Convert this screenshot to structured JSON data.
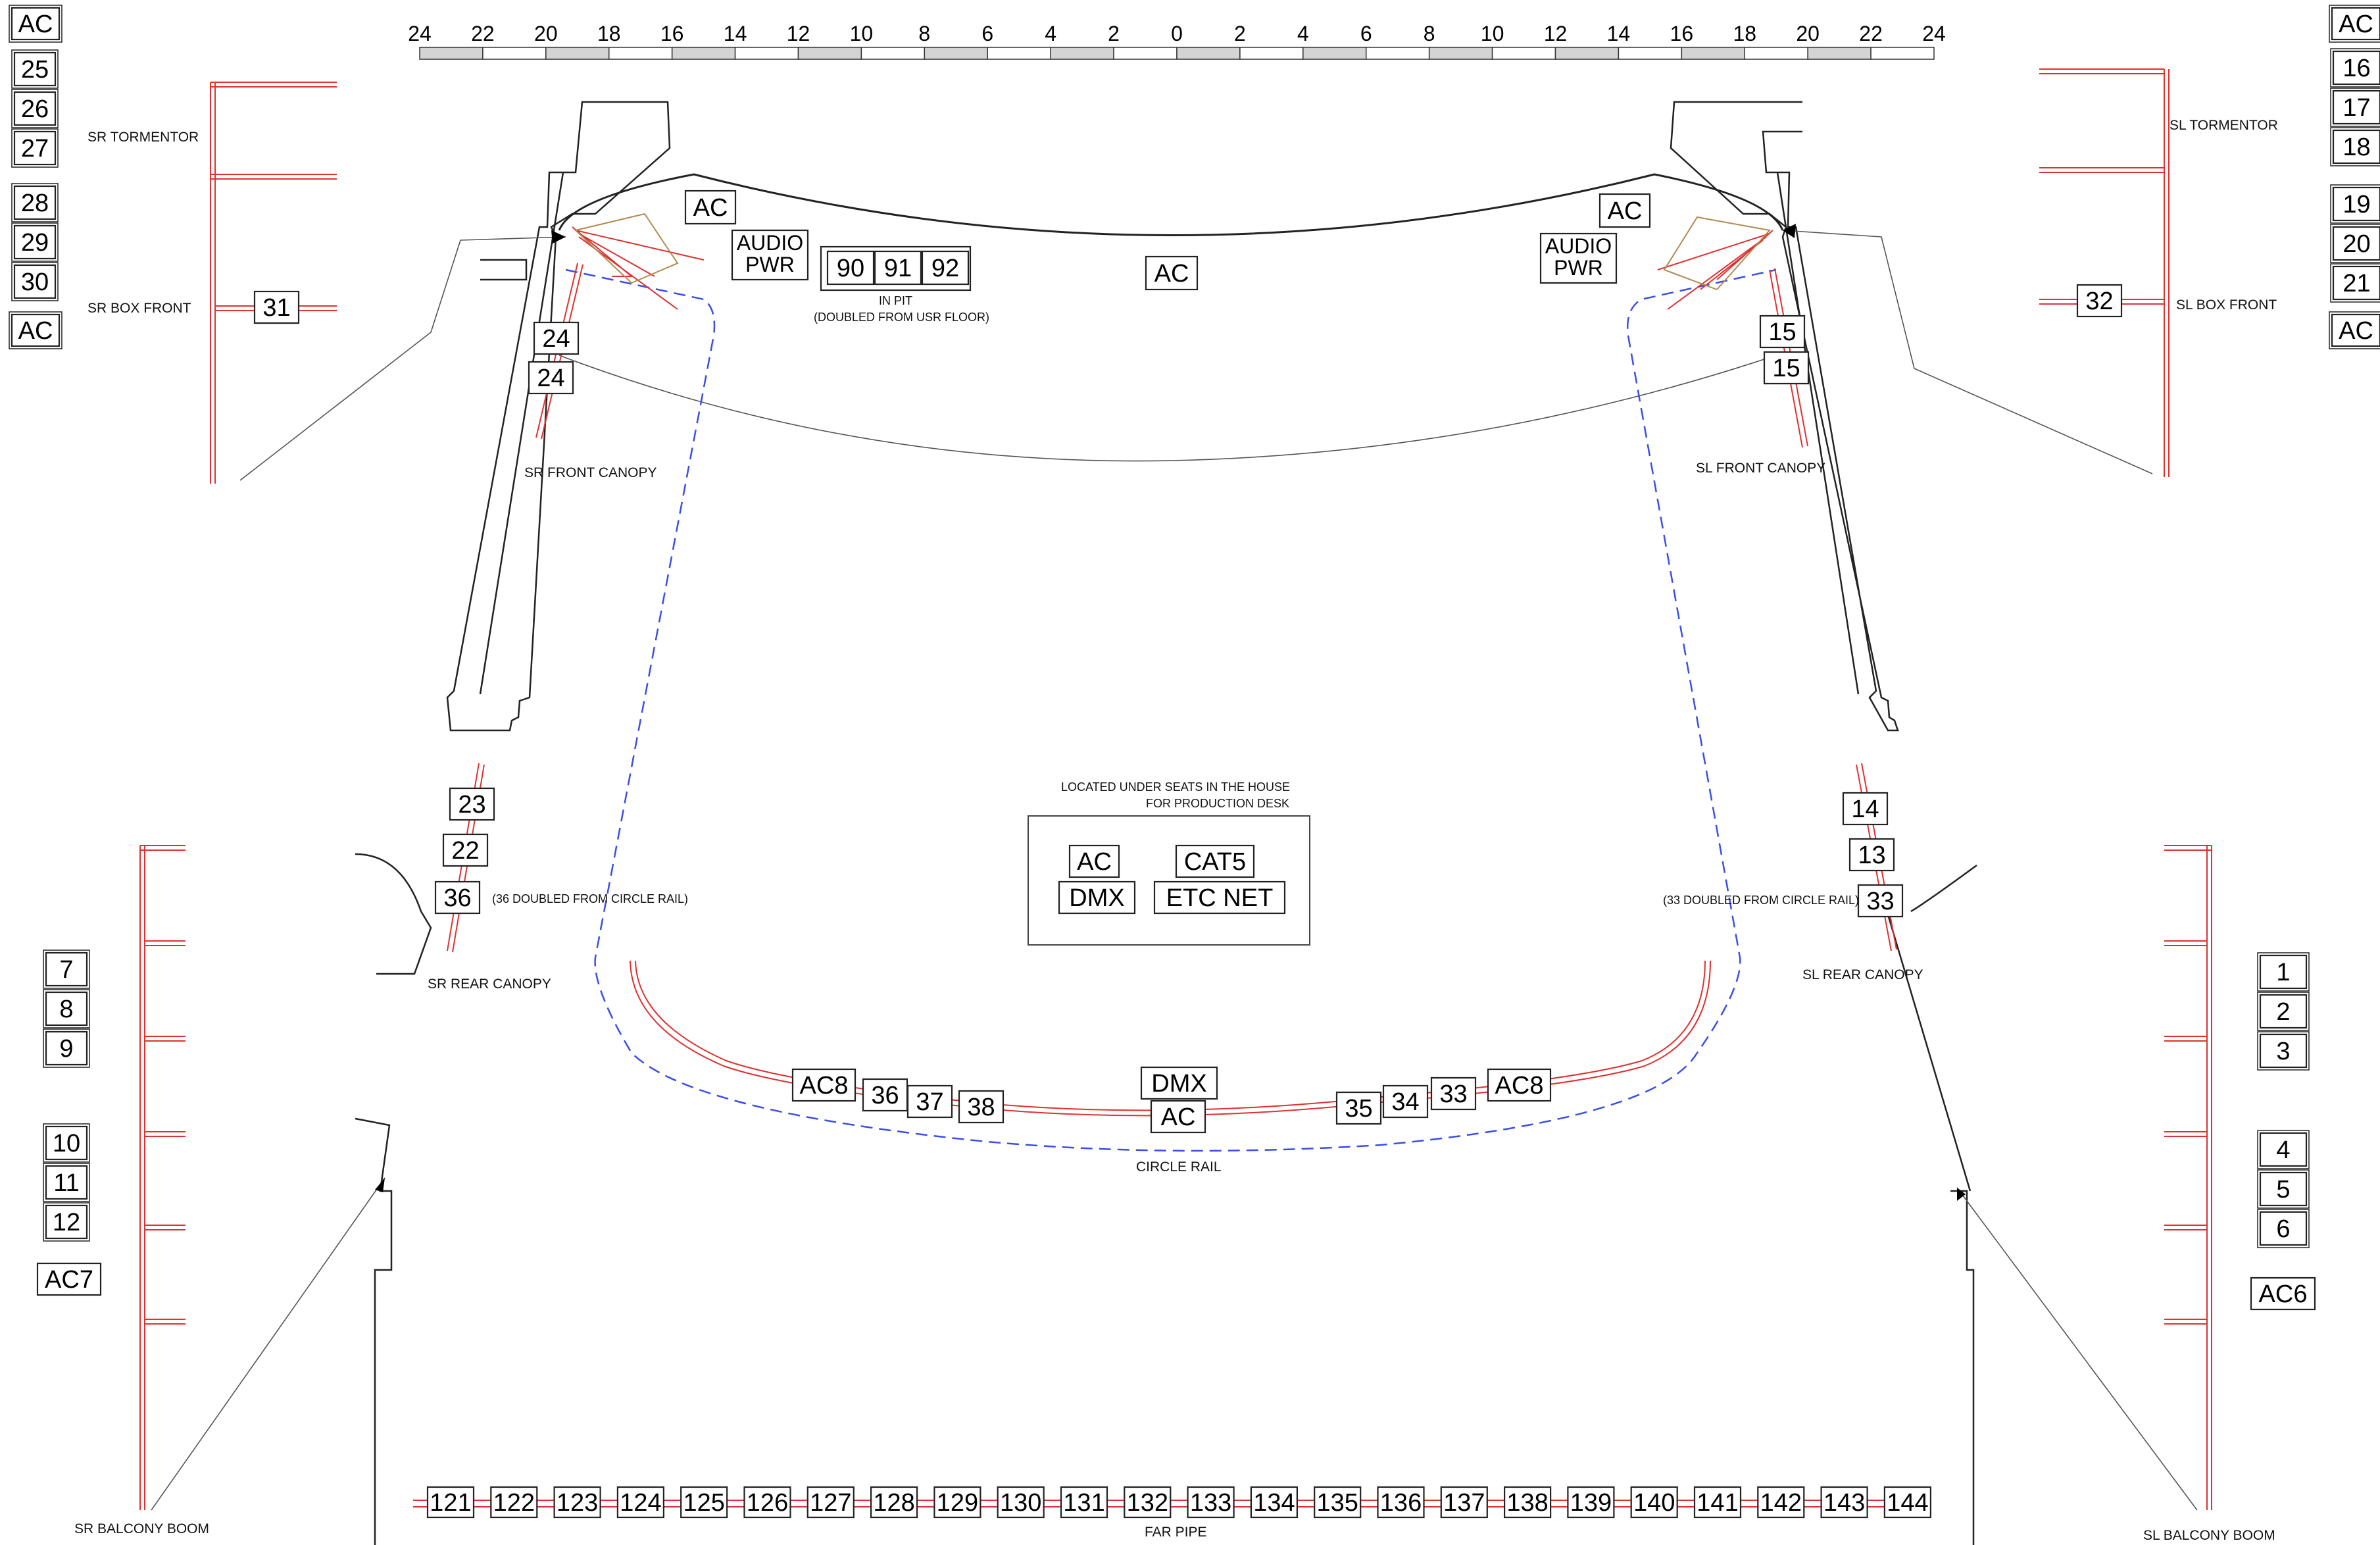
{
  "ruler": {
    "labels": [
      "24",
      "22",
      "20",
      "18",
      "16",
      "14",
      "12",
      "10",
      "8",
      "6",
      "4",
      "2",
      "0",
      "2",
      "4",
      "6",
      "8",
      "10",
      "12",
      "14",
      "16",
      "18",
      "20",
      "22",
      "24"
    ]
  },
  "boxes": {
    "ac_top_left": "AC",
    "c25": "25",
    "c26": "26",
    "c27": "27",
    "c28": "28",
    "c29": "29",
    "c30": "30",
    "ac_mid_left": "AC",
    "c31": "31",
    "ac_top_right": "AC",
    "c16": "16",
    "c17": "17",
    "c18": "18",
    "c19": "19",
    "c20": "20",
    "c21": "21",
    "ac_mid_right": "AC",
    "c32": "32",
    "ac_sr_prosc": "AC",
    "audio_pwr_sr": [
      "AUDIO",
      "PWR"
    ],
    "pit_90": "90",
    "pit_91": "91",
    "pit_92": "92",
    "ac_apron": "AC",
    "ac_sl_prosc": "AC",
    "audio_pwr_sl": [
      "AUDIO",
      "PWR"
    ],
    "c24a": "24",
    "c24b": "24",
    "c15a": "15",
    "c15b": "15",
    "c23": "23",
    "c22": "22",
    "c36_sr": "36",
    "c14": "14",
    "c13": "13",
    "c33_sl": "33",
    "desk_ac": "AC",
    "desk_cat5": "CAT5",
    "desk_dmx": "DMX",
    "desk_etc": "ETC NET",
    "c7": "7",
    "c8": "8",
    "c9": "9",
    "c10": "10",
    "c11": "11",
    "c12": "12",
    "ac7": "AC7",
    "c1": "1",
    "c2": "2",
    "c3": "3",
    "c4": "4",
    "c5": "5",
    "c6": "6",
    "ac6": "AC6",
    "rail_ac8_l": "AC8",
    "rail_36": "36",
    "rail_37": "37",
    "rail_38": "38",
    "rail_dmx": "DMX",
    "rail_ac": "AC",
    "rail_35": "35",
    "rail_34": "34",
    "rail_33": "33",
    "rail_ac8_r": "AC8"
  },
  "far_pipe": [
    "121",
    "122",
    "123",
    "124",
    "125",
    "126",
    "127",
    "128",
    "129",
    "130",
    "131",
    "132",
    "133",
    "134",
    "135",
    "136",
    "137",
    "138",
    "139",
    "140",
    "141",
    "142",
    "143",
    "144"
  ],
  "labels": {
    "sr_tormentor": "SR TORMENTOR",
    "sr_box_front": "SR BOX FRONT",
    "sl_tormentor": "SL TORMENTOR",
    "sl_box_front": "SL BOX FRONT",
    "in_pit": "IN PIT",
    "doubled_usr": "(DOUBLED FROM USR FLOOR)",
    "sr_front_canopy": "SR FRONT CANOPY",
    "sl_front_canopy": "SL FRONT CANOPY",
    "desk_note_1": "LOCATED UNDER SEATS IN THE HOUSE",
    "desk_note_2": "FOR PRODUCTION DESK",
    "sr_doubled_note": "(36 DOUBLED FROM CIRCLE RAIL)",
    "sl_doubled_note": "(33 DOUBLED FROM CIRCLE RAIL)",
    "sr_rear_canopy": "SR REAR CANOPY",
    "sl_rear_canopy": "SL REAR CANOPY",
    "circle_rail": "CIRCLE RAIL",
    "far_pipe": "FAR PIPE",
    "sr_balcony_boom": "SR BALCONY BOOM",
    "sl_balcony_boom": "SL BALCONY BOOM"
  },
  "colors": {
    "rigging": "#e03030",
    "outline": "#222222",
    "dashed_path": "#3a4ee8",
    "sightline": "#555555",
    "fixture_tan": "#b08a50",
    "ruler_shade": "#d4d4d4"
  }
}
